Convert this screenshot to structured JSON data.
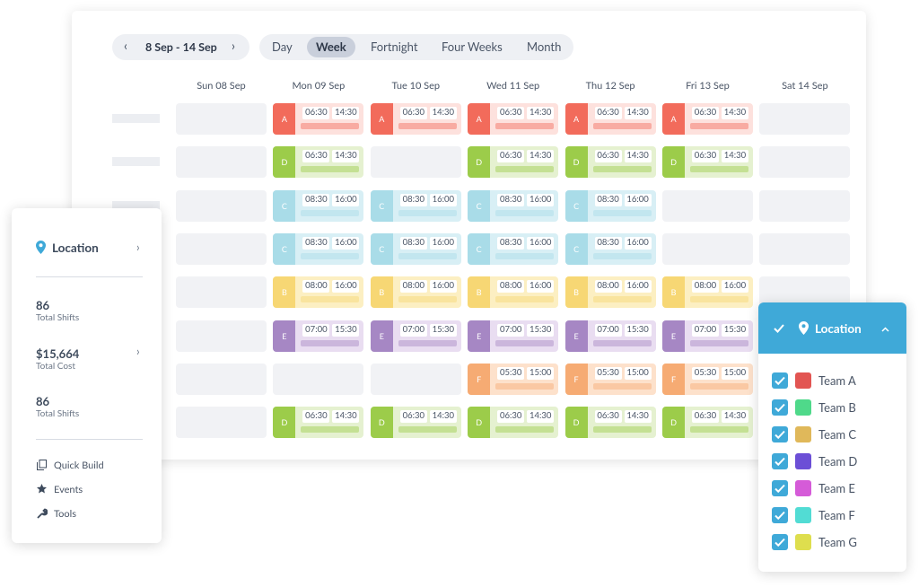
{
  "toolbar": {
    "date_range": "8 Sep - 14 Sep",
    "views": [
      {
        "label": "Day"
      },
      {
        "label": "Week",
        "selected": true
      },
      {
        "label": "Fortnight"
      },
      {
        "label": "Four Weeks"
      },
      {
        "label": "Month"
      }
    ]
  },
  "schedule": {
    "days": [
      "Sun 08 Sep",
      "Mon 09 Sep",
      "Tue 10 Sep",
      "Wed 11 Sep",
      "Thu 12 Sep",
      "Fri 13 Sep",
      "Sat 14 Sep"
    ],
    "team_colors": {
      "A": [
        "#f26b5b",
        "#fde1dd"
      ],
      "B": [
        "#f7d774",
        "#fcefc2"
      ],
      "C": [
        "#a9dce8",
        "#d8eff5"
      ],
      "D": [
        "#9ccc4a",
        "#e5f1d0"
      ],
      "E": [
        "#a687c4",
        "#e9ddf1"
      ],
      "F": [
        "#f6ab73",
        "#fde1cb"
      ]
    },
    "rows": [
      [
        null,
        {
          "team": "A",
          "start": "06:30",
          "end": "14:30"
        },
        {
          "team": "A",
          "start": "06:30",
          "end": "14:30"
        },
        {
          "team": "A",
          "start": "06:30",
          "end": "14:30"
        },
        {
          "team": "A",
          "start": "06:30",
          "end": "14:30"
        },
        {
          "team": "A",
          "start": "06:30",
          "end": "14:30"
        },
        null
      ],
      [
        null,
        {
          "team": "D",
          "start": "06:30",
          "end": "14:30"
        },
        null,
        {
          "team": "D",
          "start": "06:30",
          "end": "14:30"
        },
        {
          "team": "D",
          "start": "06:30",
          "end": "14:30"
        },
        {
          "team": "D",
          "start": "06:30",
          "end": "14:30"
        },
        null
      ],
      [
        null,
        {
          "team": "C",
          "start": "08:30",
          "end": "16:00"
        },
        {
          "team": "C",
          "start": "08:30",
          "end": "16:00"
        },
        {
          "team": "C",
          "start": "08:30",
          "end": "16:00"
        },
        {
          "team": "C",
          "start": "08:30",
          "end": "16:00"
        },
        null,
        null
      ],
      [
        null,
        {
          "team": "C",
          "start": "08:30",
          "end": "16:00"
        },
        {
          "team": "C",
          "start": "08:30",
          "end": "16:00"
        },
        {
          "team": "C",
          "start": "08:30",
          "end": "16:00"
        },
        {
          "team": "C",
          "start": "08:30",
          "end": "16:00"
        },
        null,
        null
      ],
      [
        null,
        {
          "team": "B",
          "start": "08:00",
          "end": "16:00"
        },
        {
          "team": "B",
          "start": "08:00",
          "end": "16:00"
        },
        {
          "team": "B",
          "start": "08:00",
          "end": "16:00"
        },
        {
          "team": "B",
          "start": "08:00",
          "end": "16:00"
        },
        {
          "team": "B",
          "start": "08:00",
          "end": "16:00"
        },
        null
      ],
      [
        null,
        {
          "team": "E",
          "start": "07:00",
          "end": "15:30"
        },
        {
          "team": "E",
          "start": "07:00",
          "end": "15:30"
        },
        {
          "team": "E",
          "start": "07:00",
          "end": "15:30"
        },
        {
          "team": "E",
          "start": "07:00",
          "end": "15:30"
        },
        {
          "team": "E",
          "start": "07:00",
          "end": "15:30"
        },
        null
      ],
      [
        null,
        null,
        null,
        {
          "team": "F",
          "start": "05:30",
          "end": "15:00"
        },
        {
          "team": "F",
          "start": "05:30",
          "end": "15:00"
        },
        {
          "team": "F",
          "start": "05:30",
          "end": "15:00"
        },
        null
      ],
      [
        null,
        {
          "team": "D",
          "start": "06:30",
          "end": "14:30"
        },
        {
          "team": "D",
          "start": "06:30",
          "end": "14:30"
        },
        {
          "team": "D",
          "start": "06:30",
          "end": "14:30"
        },
        {
          "team": "D",
          "start": "06:30",
          "end": "14:30"
        },
        {
          "team": "D",
          "start": "06:30",
          "end": "14:30"
        },
        null
      ]
    ]
  },
  "summary_panel": {
    "location": "Location",
    "stats": [
      {
        "value": 86,
        "label": "Total Shifts"
      },
      {
        "value": "$15,664",
        "label": "Total Cost"
      },
      {
        "value": 86,
        "label": "Total Shifts"
      }
    ],
    "menu": [
      "Quick Build",
      "Events",
      "Tools"
    ]
  },
  "location_filter": {
    "title": "Location",
    "teams": [
      {
        "name": "Team A",
        "color": "#e25552",
        "checked": true
      },
      {
        "name": "Team B",
        "color": "#4fd98a",
        "checked": true
      },
      {
        "name": "Team C",
        "color": "#e0b85a",
        "checked": true
      },
      {
        "name": "Team D",
        "color": "#6c4fd6",
        "checked": true
      },
      {
        "name": "Team E",
        "color": "#d55bd8",
        "checked": true
      },
      {
        "name": "Team F",
        "color": "#52dcd4",
        "checked": true
      },
      {
        "name": "Team G",
        "color": "#dede4e",
        "checked": true
      }
    ]
  }
}
